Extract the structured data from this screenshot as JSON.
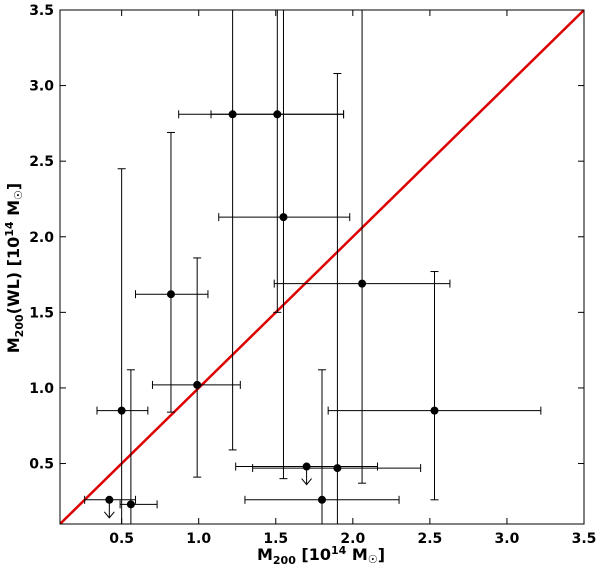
{
  "chart_data": {
    "type": "scatter",
    "title": "",
    "xlabel": "M200 [10^14 M☉]",
    "ylabel": "M200(WL) [10^14 M☉]",
    "xlim": [
      0.1,
      3.5
    ],
    "ylim": [
      0.1,
      3.5
    ],
    "xticks": [
      0.5,
      1.0,
      1.5,
      2.0,
      2.5,
      3.0,
      3.5
    ],
    "yticks": [
      0.5,
      1.0,
      1.5,
      2.0,
      2.5,
      3.0,
      3.5
    ],
    "xtick_labels": [
      "0.5",
      "1.0",
      "1.5",
      "2.0",
      "2.5",
      "3.0",
      "3.5"
    ],
    "ytick_labels": [
      "0.5",
      "1.0",
      "1.5",
      "2.0",
      "2.5",
      "3.0",
      "3.5"
    ],
    "xlabel_parts": {
      "main": "M",
      "sub": "200",
      "rest": " [10",
      "sup": "14",
      "rest2": " M",
      "sun": "☉",
      "end": "]"
    },
    "ylabel_parts": {
      "main": "M",
      "sub": "200",
      "rest": "(WL) [10",
      "sup": "14",
      "rest2": " M",
      "sun": "☉",
      "end": "]"
    },
    "reference_line": {
      "from": [
        0.1,
        0.1
      ],
      "to": [
        3.5,
        3.5
      ],
      "color": "#dd0000"
    },
    "grid": false,
    "points": [
      {
        "x": 0.42,
        "y": 0.26,
        "xerr": [
          0.16,
          0.17
        ],
        "yerr": null,
        "upper_limit": true
      },
      {
        "x": 0.5,
        "y": 0.85,
        "xerr": [
          0.16,
          0.17
        ],
        "yerr": [
          0.75,
          1.6
        ]
      },
      {
        "x": 0.56,
        "y": 0.23,
        "xerr": [
          0.07,
          0.17
        ],
        "yerr": [
          0.13,
          0.89
        ]
      },
      {
        "x": 0.82,
        "y": 1.62,
        "xerr": [
          0.23,
          0.24
        ],
        "yerr": [
          0.78,
          1.07
        ]
      },
      {
        "x": 0.99,
        "y": 1.02,
        "xerr": [
          0.29,
          0.28
        ],
        "yerr": [
          0.61,
          0.84
        ]
      },
      {
        "x": 1.22,
        "y": 2.81,
        "xerr": [
          0.35,
          0.72
        ],
        "yerr": [
          2.22,
          0.69
        ]
      },
      {
        "x": 1.51,
        "y": 2.81,
        "xerr": [
          0.43,
          0.43
        ],
        "yerr": [
          1.31,
          0.69
        ]
      },
      {
        "x": 1.55,
        "y": 2.13,
        "xerr": [
          0.42,
          0.43
        ],
        "yerr": [
          1.73,
          1.37
        ]
      },
      {
        "x": 1.7,
        "y": 0.48,
        "xerr": [
          0.46,
          0.46
        ],
        "yerr": null,
        "upper_limit": true
      },
      {
        "x": 1.8,
        "y": 0.26,
        "xerr": [
          0.5,
          0.5
        ],
        "yerr": [
          0.16,
          0.86
        ]
      },
      {
        "x": 1.9,
        "y": 0.47,
        "xerr": [
          0.55,
          0.54
        ],
        "yerr": [
          0.37,
          2.61
        ]
      },
      {
        "x": 2.06,
        "y": 1.69,
        "xerr": [
          0.57,
          0.57
        ],
        "yerr": [
          1.32,
          1.81
        ]
      },
      {
        "x": 2.53,
        "y": 0.85,
        "xerr": [
          0.69,
          0.69
        ],
        "yerr": [
          0.59,
          0.92
        ]
      }
    ]
  }
}
